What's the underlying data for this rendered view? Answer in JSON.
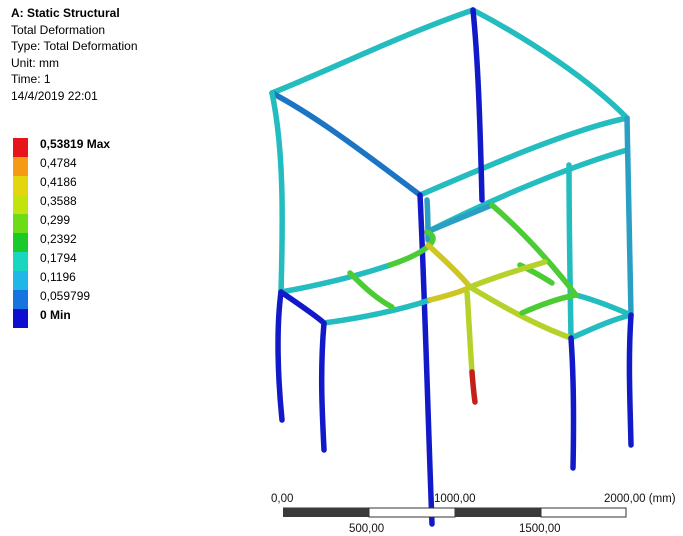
{
  "info": {
    "title": "A: Static Structural",
    "result_name": "Total Deformation",
    "type_line": "Type: Total Deformation",
    "unit_line": "Unit: mm",
    "time_line": "Time: 1",
    "timestamp": "14/4/2019 22:01"
  },
  "legend": [
    {
      "label": "0,53819 Max",
      "color": "#e8141c",
      "bold": true
    },
    {
      "label": "0,4784",
      "color": "#f59a14",
      "bold": false
    },
    {
      "label": "0,4186",
      "color": "#e3d611",
      "bold": false
    },
    {
      "label": "0,3588",
      "color": "#c3e30f",
      "bold": false
    },
    {
      "label": "0,299",
      "color": "#6cdc17",
      "bold": false
    },
    {
      "label": "0,2392",
      "color": "#19cb2a",
      "bold": false
    },
    {
      "label": "0,1794",
      "color": "#19d6c0",
      "bold": false
    },
    {
      "label": "0,1196",
      "color": "#1fb8e6",
      "bold": false
    },
    {
      "label": "0,059799",
      "color": "#1673e0",
      "bold": false
    },
    {
      "label": "0 Min",
      "color": "#0d0ed0",
      "bold": true
    }
  ],
  "scale_bar": {
    "top_labels": [
      "0,00",
      "1000,00",
      "2000,00 (mm)"
    ],
    "bottom_labels": [
      "500,00",
      "1500,00"
    ]
  },
  "colors": {
    "min_blue": "#1219c8",
    "low_blue": "#1c74c4",
    "mid_blue": "#2a9fc4",
    "cyan": "#23bcbf",
    "green": "#4ccc34",
    "yellow_green": "#b5d22a",
    "yellow": "#cfc624",
    "red": "#c4201a"
  }
}
